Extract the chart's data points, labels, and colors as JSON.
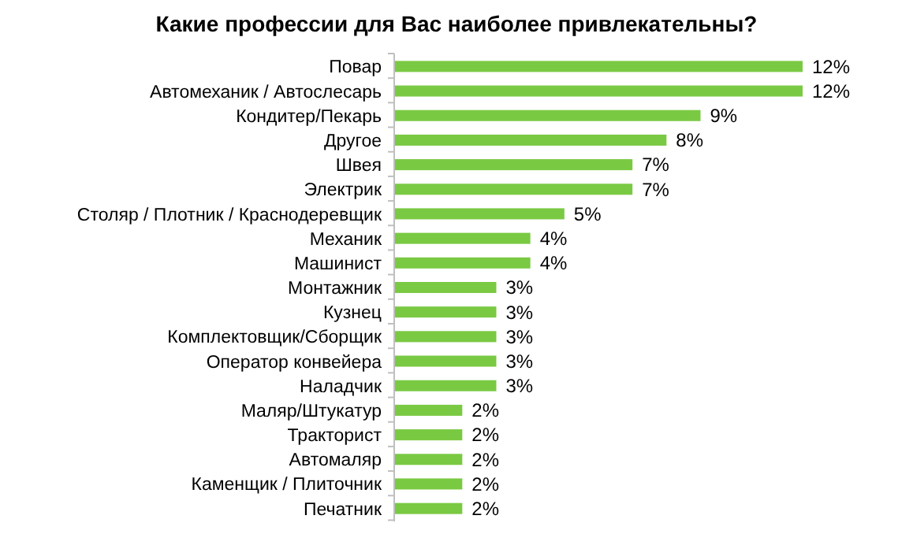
{
  "chart_data": {
    "type": "bar",
    "orientation": "horizontal",
    "title": "Какие профессии для Вас наиболее привлекательны?",
    "categories": [
      "Повар",
      "Автомеханик / Автослесарь",
      "Кондитер/Пекарь",
      "Другое",
      "Швея",
      "Электрик",
      "Столяр / Плотник / Краснодеревщик",
      "Механик",
      "Машинист",
      "Монтажник",
      "Кузнец",
      "Комплектовщик/Сборщик",
      "Оператор конвейера",
      "Наладчик",
      "Маляр/Штукатур",
      "Тракторист",
      "Автомаляр",
      "Каменщик  / Плиточник",
      "Печатник"
    ],
    "values": [
      12,
      12,
      9,
      8,
      7,
      7,
      5,
      4,
      4,
      3,
      3,
      3,
      3,
      3,
      2,
      2,
      2,
      2,
      2
    ],
    "value_labels": [
      "12%",
      "12%",
      "9%",
      "8%",
      "7%",
      "7%",
      "5%",
      "4%",
      "4%",
      "3%",
      "3%",
      "3%",
      "3%",
      "3%",
      "2%",
      "2%",
      "2%",
      "2%",
      "2%"
    ],
    "color": "#7ac943"
  }
}
